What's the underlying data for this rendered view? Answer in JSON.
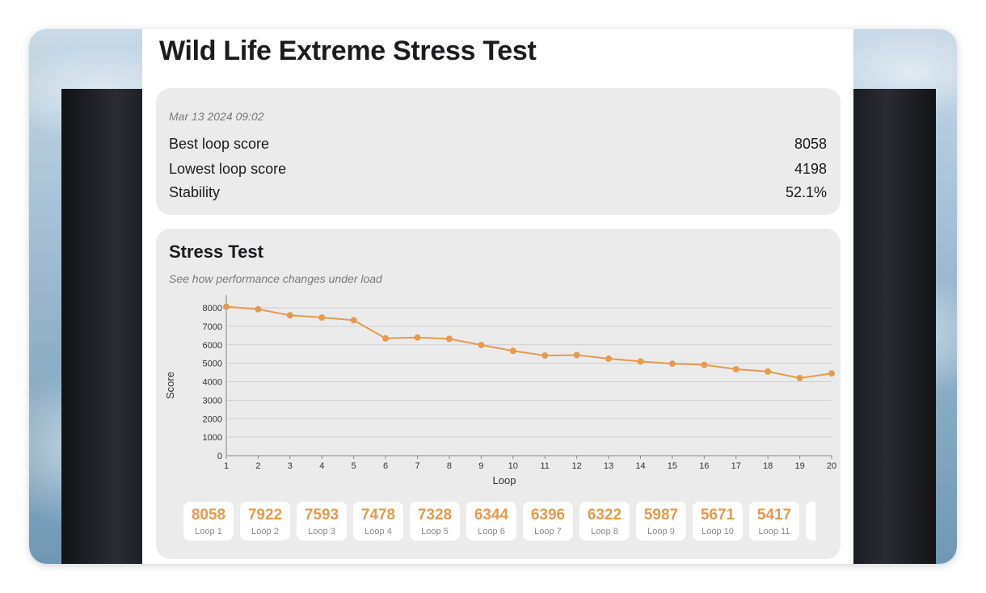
{
  "app": {
    "title": "Wild Life Extreme Stress Test"
  },
  "summary": {
    "date": "Mar 13 2024 09:02",
    "rows": [
      {
        "label": "Best loop score",
        "value": "8058"
      },
      {
        "label": "Lowest loop score",
        "value": "4198"
      },
      {
        "label": "Stability",
        "value": "52.1%"
      }
    ]
  },
  "stress_section": {
    "heading": "Stress Test",
    "subtitle": "See how performance changes under load"
  },
  "chart_data": {
    "type": "line",
    "xlabel": "Loop",
    "ylabel": "Score",
    "x": [
      1,
      2,
      3,
      4,
      5,
      6,
      7,
      8,
      9,
      10,
      11,
      12,
      13,
      14,
      15,
      16,
      17,
      18,
      19,
      20
    ],
    "series": [
      {
        "values": [
          8058,
          7922,
          7593,
          7478,
          7328,
          6344,
          6396,
          6322,
          5987,
          5671,
          5417,
          5440,
          5250,
          5100,
          4980,
          4910,
          4680,
          4550,
          4198,
          4450
        ]
      }
    ],
    "ylim": [
      0,
      8000
    ],
    "yticks": [
      0,
      1000,
      2000,
      3000,
      4000,
      5000,
      6000,
      7000,
      8000
    ],
    "grid": true,
    "color": "#e49b50"
  },
  "loops": [
    {
      "score": "8058",
      "label": "Loop 1"
    },
    {
      "score": "7922",
      "label": "Loop 2"
    },
    {
      "score": "7593",
      "label": "Loop 3"
    },
    {
      "score": "7478",
      "label": "Loop 4"
    },
    {
      "score": "7328",
      "label": "Loop 5"
    },
    {
      "score": "6344",
      "label": "Loop 6"
    },
    {
      "score": "6396",
      "label": "Loop 7"
    },
    {
      "score": "6322",
      "label": "Loop 8"
    },
    {
      "score": "5987",
      "label": "Loop 9"
    },
    {
      "score": "5671",
      "label": "Loop 10"
    },
    {
      "score": "5417",
      "label": "Loop 11"
    },
    {
      "score": "",
      "label": ""
    }
  ]
}
